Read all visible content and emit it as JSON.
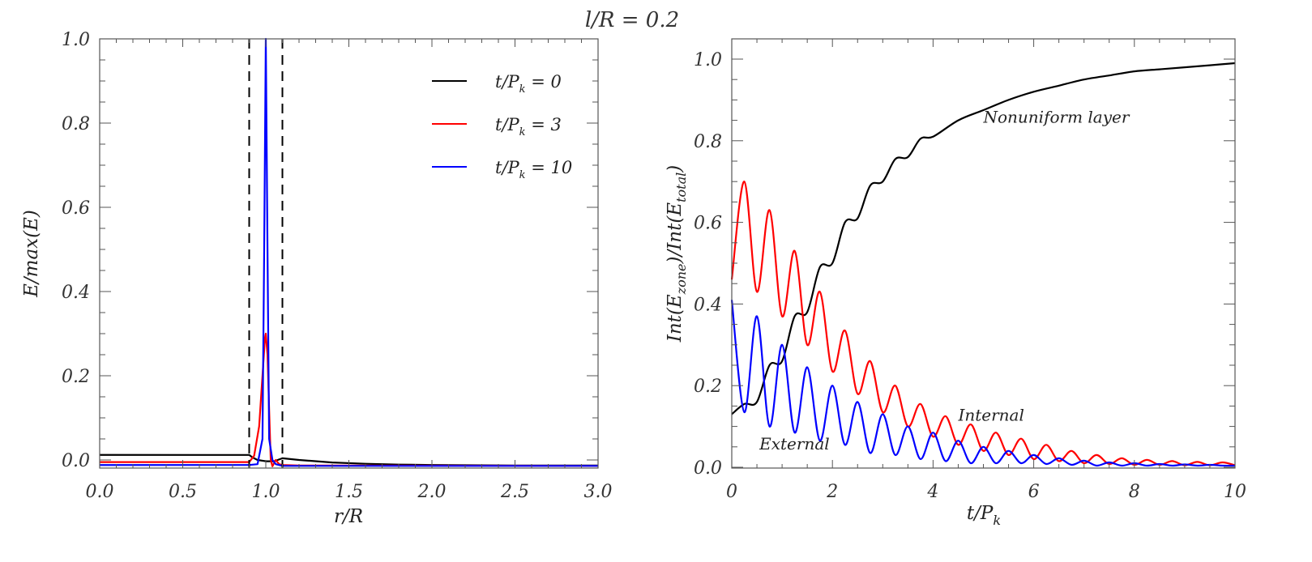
{
  "figure": {
    "suptitle": "l/R = 0.2"
  },
  "chart_data": [
    {
      "type": "line",
      "title": "",
      "xlabel": "r/R",
      "ylabel": "E/max(E)",
      "xlim": [
        0.0,
        3.0
      ],
      "ylim": [
        -0.02,
        1.0
      ],
      "xticks": [
        "0.0",
        "0.5",
        "1.0",
        "1.5",
        "2.0",
        "2.5",
        "3.0"
      ],
      "yticks": [
        "0.0",
        "0.2",
        "0.4",
        "0.6",
        "0.8",
        "1.0"
      ],
      "grid": false,
      "legend_position": "upper right",
      "vlines": [
        {
          "x": 0.9,
          "style": "dashed",
          "color": "#000000"
        },
        {
          "x": 1.1,
          "style": "dashed",
          "color": "#000000"
        }
      ],
      "series": [
        {
          "name": "t/P_k = 0",
          "legend_label": "t/P",
          "legend_sub": "k",
          "legend_value": "= 0",
          "color": "#000000",
          "x": [
            0.0,
            0.9,
            0.92,
            0.95,
            1.0,
            1.05,
            1.1,
            1.2,
            1.4,
            1.6,
            1.8,
            2.0,
            2.5,
            3.0
          ],
          "y": [
            0.012,
            0.012,
            0.006,
            0.0,
            -0.003,
            -0.003,
            0.004,
            0.0,
            -0.006,
            -0.009,
            -0.011,
            -0.012,
            -0.013,
            -0.013
          ]
        },
        {
          "name": "t/P_k = 3",
          "legend_label": "t/P",
          "legend_sub": "k",
          "legend_value": "= 3",
          "color": "#ff0000",
          "x": [
            0.0,
            0.9,
            0.93,
            0.96,
            0.98,
            0.995,
            1.0,
            1.01,
            1.02,
            1.03,
            1.04,
            1.06,
            1.08,
            1.1,
            1.2,
            3.0
          ],
          "y": [
            -0.005,
            -0.005,
            0.01,
            0.08,
            0.2,
            0.29,
            0.3,
            0.25,
            0.12,
            0.0,
            -0.015,
            0.0,
            -0.01,
            -0.012,
            -0.013,
            -0.014
          ]
        },
        {
          "name": "t/P_k = 10",
          "legend_label": "t/P",
          "legend_sub": "k",
          "legend_value": "= 10",
          "color": "#0000ff",
          "x": [
            0.0,
            0.9,
            0.95,
            0.98,
            0.99,
            1.0,
            1.01,
            1.02,
            1.04,
            1.06,
            1.1,
            3.0
          ],
          "y": [
            -0.012,
            -0.012,
            -0.01,
            0.05,
            0.5,
            1.0,
            0.5,
            0.05,
            0.0,
            -0.01,
            -0.014,
            -0.014
          ]
        }
      ]
    },
    {
      "type": "line",
      "title": "",
      "xlabel": "t/P_k",
      "ylabel": "Int(E_zone)/Int(E_total)",
      "xlim": [
        0,
        10
      ],
      "ylim": [
        0.0,
        1.05
      ],
      "xticks": [
        "0",
        "2",
        "4",
        "6",
        "8",
        "10"
      ],
      "yticks": [
        "0.0",
        "0.2",
        "0.4",
        "0.6",
        "0.8",
        "1.0"
      ],
      "grid": false,
      "annotations": [
        {
          "text": "Nonuniform layer",
          "x": 5.0,
          "y": 0.86
        },
        {
          "text": "Internal",
          "x": 4.5,
          "y": 0.13
        },
        {
          "text": "External",
          "x": 0.55,
          "y": 0.06
        }
      ],
      "series": [
        {
          "name": "Nonuniform layer",
          "color": "#000000",
          "x": [
            0,
            0.25,
            0.5,
            0.75,
            1.0,
            1.25,
            1.5,
            1.75,
            2.0,
            2.25,
            2.5,
            2.75,
            3.0,
            3.25,
            3.5,
            3.75,
            4.0,
            4.5,
            5.0,
            5.5,
            6.0,
            6.5,
            7.0,
            7.5,
            8.0,
            8.5,
            9.0,
            9.5,
            10.0
          ],
          "y": [
            0.13,
            0.155,
            0.16,
            0.25,
            0.26,
            0.37,
            0.38,
            0.49,
            0.5,
            0.6,
            0.61,
            0.69,
            0.7,
            0.755,
            0.76,
            0.805,
            0.81,
            0.85,
            0.875,
            0.9,
            0.92,
            0.935,
            0.95,
            0.96,
            0.97,
            0.975,
            0.98,
            0.985,
            0.99
          ]
        },
        {
          "name": "Internal",
          "color": "#ff0000",
          "x": [
            0,
            0.25,
            0.5,
            0.75,
            1.0,
            1.25,
            1.5,
            1.75,
            2.0,
            2.25,
            2.5,
            2.75,
            3.0,
            3.25,
            3.5,
            3.75,
            4.0,
            4.25,
            4.5,
            4.75,
            5.0,
            5.25,
            5.5,
            5.75,
            6.0,
            6.25,
            6.5,
            6.75,
            7.0,
            7.25,
            7.5,
            7.75,
            8.0,
            8.25,
            8.5,
            8.75,
            9.0,
            9.25,
            9.5,
            9.75,
            10.0
          ],
          "y": [
            0.46,
            0.7,
            0.43,
            0.63,
            0.37,
            0.53,
            0.3,
            0.43,
            0.235,
            0.335,
            0.18,
            0.26,
            0.135,
            0.2,
            0.1,
            0.155,
            0.075,
            0.125,
            0.055,
            0.105,
            0.04,
            0.085,
            0.03,
            0.07,
            0.02,
            0.055,
            0.015,
            0.04,
            0.01,
            0.03,
            0.008,
            0.022,
            0.006,
            0.018,
            0.006,
            0.015,
            0.005,
            0.013,
            0.005,
            0.012,
            0.005
          ]
        },
        {
          "name": "External",
          "color": "#0000ff",
          "x": [
            0,
            0.25,
            0.5,
            0.75,
            1.0,
            1.25,
            1.5,
            1.75,
            2.0,
            2.25,
            2.5,
            2.75,
            3.0,
            3.25,
            3.5,
            3.75,
            4.0,
            4.25,
            4.5,
            4.75,
            5.0,
            5.25,
            5.5,
            5.75,
            6.0,
            6.25,
            6.5,
            6.75,
            7.0,
            7.25,
            7.5,
            7.75,
            8.0,
            8.25,
            8.5,
            8.75,
            9.0,
            9.25,
            9.5,
            9.75,
            10.0
          ],
          "y": [
            0.41,
            0.135,
            0.37,
            0.1,
            0.3,
            0.085,
            0.245,
            0.065,
            0.2,
            0.055,
            0.16,
            0.035,
            0.13,
            0.03,
            0.1,
            0.02,
            0.085,
            0.015,
            0.065,
            0.01,
            0.05,
            0.01,
            0.04,
            0.01,
            0.03,
            0.008,
            0.022,
            0.006,
            0.016,
            0.004,
            0.012,
            0.004,
            0.01,
            0.004,
            0.008,
            0.004,
            0.007,
            0.004,
            0.006,
            0.004,
            0.004
          ]
        }
      ]
    }
  ]
}
